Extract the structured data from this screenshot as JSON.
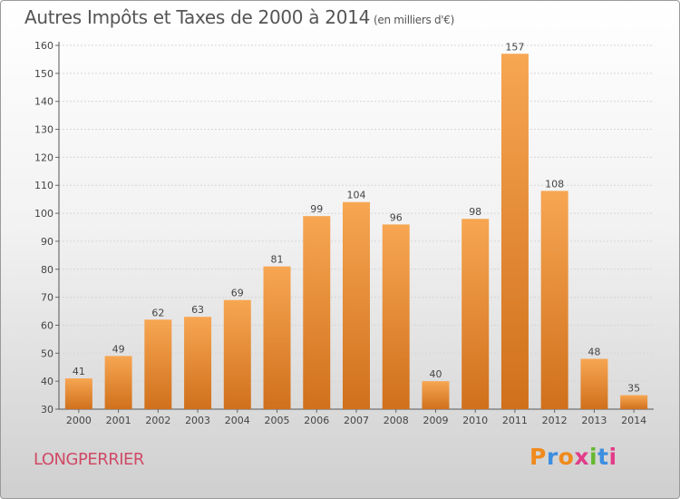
{
  "header": {
    "title": "Autres Impôts et Taxes de 2000 à 2014",
    "unit": "(en milliers d'€)"
  },
  "footer": {
    "town": "LONGPERRIER",
    "logo_text": "Proxiti"
  },
  "colors": {
    "bar_top": "#f7a652",
    "bar_bottom": "#d0701c",
    "town": "#d04a66",
    "logo_letters": [
      "#f08a1c",
      "#3d8ee0",
      "#f08a1c",
      "#e23c8a",
      "#66b830",
      "#3d8ee0",
      "#e23c8a"
    ]
  },
  "chart_data": {
    "type": "bar",
    "title": "Autres Impôts et Taxes de 2000 à 2014",
    "categories": [
      "2000",
      "2001",
      "2002",
      "2003",
      "2004",
      "2005",
      "2006",
      "2007",
      "2008",
      "2009",
      "2010",
      "2011",
      "2012",
      "2013",
      "2014"
    ],
    "values": [
      41,
      49,
      62,
      63,
      69,
      81,
      99,
      104,
      96,
      40,
      98,
      157,
      108,
      48,
      35
    ],
    "ylim": [
      30,
      160
    ],
    "yticks": [
      30,
      40,
      50,
      60,
      70,
      80,
      90,
      100,
      110,
      120,
      130,
      140,
      150,
      160
    ],
    "grid": true,
    "legend": "none"
  }
}
